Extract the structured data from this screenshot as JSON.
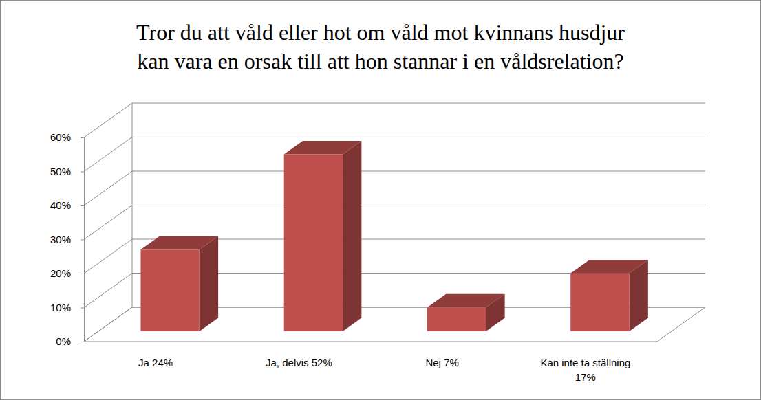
{
  "chart_data": {
    "type": "bar",
    "title": "Tror du att våld eller hot om våld mot kvinnans husdjur kan vara en orsak till att hon stannar i en våldsrelation?",
    "categories": [
      "Ja 24%",
      "Ja, delvis 52%",
      "Nej 7%",
      "Kan inte ta ställning 17%"
    ],
    "values": [
      24,
      52,
      7,
      17
    ],
    "color": "#c0504d",
    "ylim": [
      0,
      60
    ],
    "yticks": [
      {
        "value": 0,
        "label": "0%"
      },
      {
        "value": 10,
        "label": "10%"
      },
      {
        "value": 20,
        "label": "20%"
      },
      {
        "value": 30,
        "label": "30%"
      },
      {
        "value": 40,
        "label": "40%"
      },
      {
        "value": 50,
        "label": "50%"
      },
      {
        "value": 60,
        "label": "60%"
      }
    ],
    "grid": true
  }
}
